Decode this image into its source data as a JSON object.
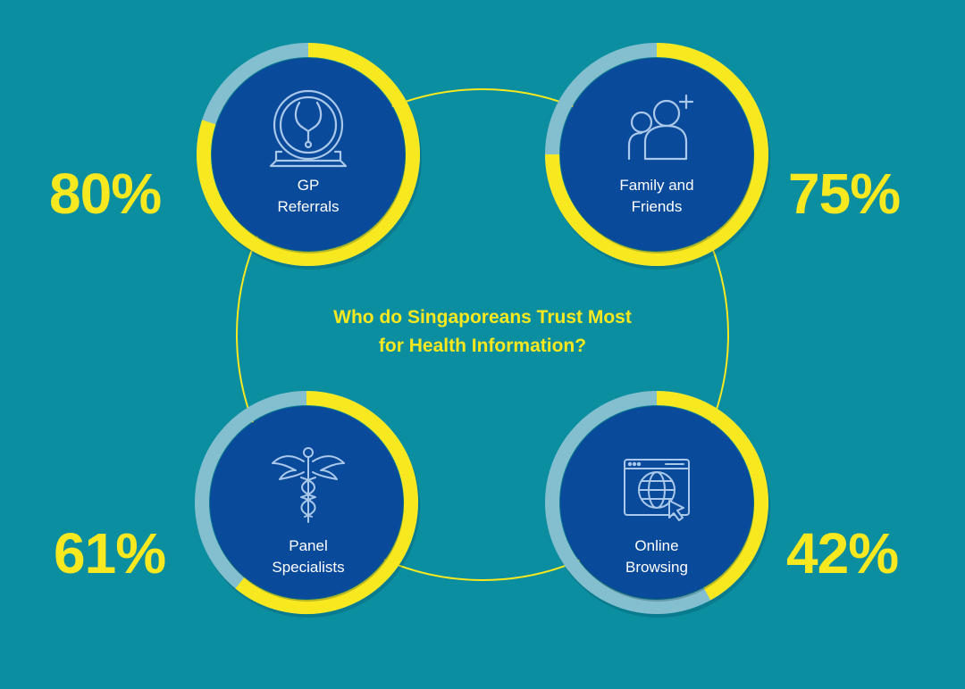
{
  "chart_data": {
    "type": "pie",
    "title_lines": [
      "Who do Singaporeans Trust Most",
      "for Health Information?"
    ],
    "items": [
      {
        "key": "gp",
        "label_lines": [
          "GP",
          "Referrals"
        ],
        "value": 80,
        "value_label": "80%",
        "icon": "stethoscope-icon"
      },
      {
        "key": "family",
        "label_lines": [
          "Family and",
          "Friends"
        ],
        "value": 75,
        "value_label": "75%",
        "icon": "family-plus-icon"
      },
      {
        "key": "panel",
        "label_lines": [
          "Panel",
          "Specialists"
        ],
        "value": 61,
        "value_label": "61%",
        "icon": "caduceus-icon"
      },
      {
        "key": "online",
        "label_lines": [
          "Online",
          "Browsing"
        ],
        "value": 42,
        "value_label": "42%",
        "icon": "browser-globe-icon"
      }
    ],
    "max": 100
  },
  "colors": {
    "background": "#0c8ea1",
    "ring_fill": "#f7e81f",
    "ring_track": "#84bfcf",
    "disc": "#0a4a9a",
    "icon_stroke": "#aac8ea",
    "text_accent": "#f7e81f",
    "text_label": "#ffffff"
  }
}
